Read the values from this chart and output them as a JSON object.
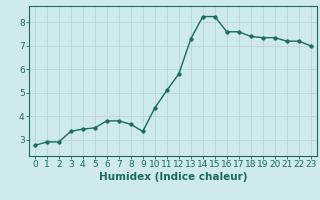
{
  "x": [
    0,
    1,
    2,
    3,
    4,
    5,
    6,
    7,
    8,
    9,
    10,
    11,
    12,
    13,
    14,
    15,
    16,
    17,
    18,
    19,
    20,
    21,
    22,
    23
  ],
  "y": [
    2.75,
    2.9,
    2.9,
    3.35,
    3.45,
    3.5,
    3.8,
    3.8,
    3.65,
    3.35,
    4.35,
    5.1,
    5.8,
    7.3,
    8.25,
    8.25,
    7.6,
    7.6,
    7.4,
    7.35,
    7.35,
    7.2,
    7.2,
    7.0
  ],
  "line_color": "#1a6b5a",
  "marker_color": "#1a6b5a",
  "bg_color": "#ceeaea",
  "grid_color": "#b8d4d4",
  "xlabel": "Humidex (Indice chaleur)",
  "xlim": [
    -0.5,
    23.5
  ],
  "ylim": [
    2.3,
    8.7
  ],
  "yticks": [
    3,
    4,
    5,
    6,
    7,
    8
  ],
  "xticks": [
    0,
    1,
    2,
    3,
    4,
    5,
    6,
    7,
    8,
    9,
    10,
    11,
    12,
    13,
    14,
    15,
    16,
    17,
    18,
    19,
    20,
    21,
    22,
    23
  ],
  "tick_color": "#1a6b5a",
  "xlabel_fontsize": 7.5,
  "tick_fontsize": 6.5,
  "line_width": 1.0,
  "marker_size": 2.5
}
